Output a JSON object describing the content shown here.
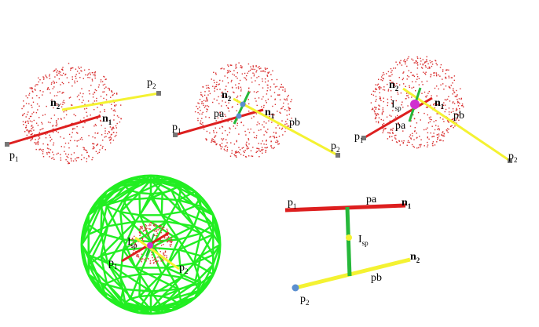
{
  "labels": {
    "p": "p",
    "n": "n",
    "sub1": "1",
    "sub2": "2",
    "pa": "pa",
    "pb": "pb",
    "I": "I",
    "sp": "sp"
  },
  "colors": {
    "point_cloud": "#d93030",
    "line_p1_n1": "#dd1f1f",
    "line_p2_n2": "#f4f232",
    "connector": "#26b83a",
    "sphere_wire": "#22ee22",
    "endpoint": "#777777",
    "closest_point": "#5b8fd0",
    "intersection": "#d030d0",
    "midpoint": "#f4f232"
  }
}
